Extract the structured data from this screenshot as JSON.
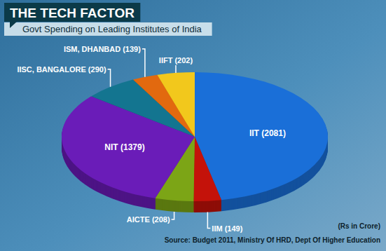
{
  "chart_data": {
    "type": "pie",
    "title": "THE TECH FACTOR",
    "subtitle": "Govt Spending on Leading Institutes of India",
    "categories": [
      "IIT (2081)",
      "IIM (149)",
      "AICTE (208)",
      "NIT (1379)",
      "IISC, BANGALORE (290)",
      "ISM, DHANBAD (139)",
      "IIFT (202)"
    ],
    "values": [
      2081,
      149,
      208,
      1379,
      290,
      139,
      202
    ],
    "colors": [
      "#1a6fd8",
      "#c4120a",
      "#7ca516",
      "#6a1cb8",
      "#137590",
      "#e2690f",
      "#f2c81c"
    ],
    "annotations": [
      "(Rs in Crore)",
      "Source: Budget 2011, Ministry Of HRD, Dept Of Higher Education"
    ]
  }
}
